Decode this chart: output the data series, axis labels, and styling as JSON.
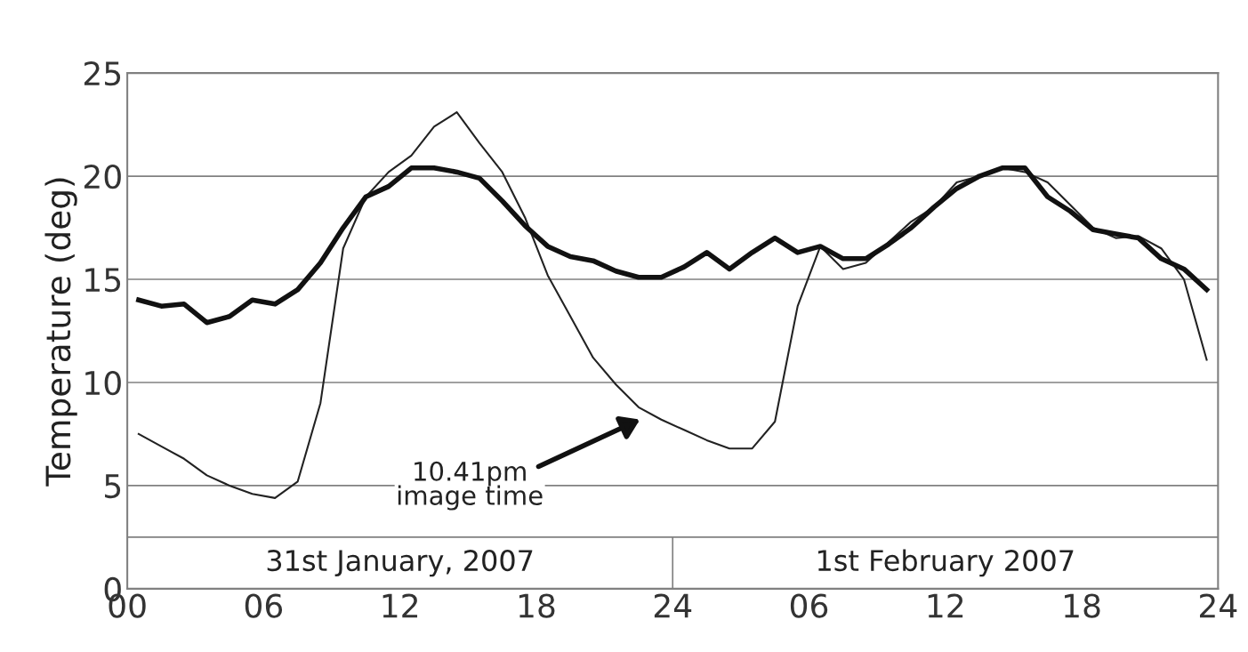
{
  "chart_data": {
    "type": "line",
    "ylabel": "Temperature (deg)",
    "x": [
      "2007-01-31T00:30",
      "2007-01-31T01:30",
      "2007-01-31T02:30",
      "2007-01-31T03:30",
      "2007-01-31T04:30",
      "2007-01-31T05:30",
      "2007-01-31T06:30",
      "2007-01-31T07:30",
      "2007-01-31T08:30",
      "2007-01-31T09:30",
      "2007-01-31T10:30",
      "2007-01-31T11:30",
      "2007-01-31T12:30",
      "2007-01-31T13:30",
      "2007-01-31T14:30",
      "2007-01-31T15:30",
      "2007-01-31T16:30",
      "2007-01-31T17:30",
      "2007-01-31T18:30",
      "2007-01-31T19:30",
      "2007-01-31T20:30",
      "2007-01-31T21:30",
      "2007-01-31T22:30",
      "2007-01-31T23:30",
      "2007-02-01T00:30",
      "2007-02-01T01:30",
      "2007-02-01T02:30",
      "2007-02-01T03:30",
      "2007-02-01T04:30",
      "2007-02-01T05:30",
      "2007-02-01T06:30",
      "2007-02-01T07:30",
      "2007-02-01T08:30",
      "2007-02-01T09:30",
      "2007-02-01T10:30",
      "2007-02-01T11:30",
      "2007-02-01T12:30",
      "2007-02-01T13:30",
      "2007-02-01T14:30",
      "2007-02-01T15:30",
      "2007-02-01T16:30",
      "2007-02-01T17:30",
      "2007-02-01T18:30",
      "2007-02-01T19:30",
      "2007-02-01T20:30",
      "2007-02-01T21:30",
      "2007-02-01T22:30",
      "2007-02-01T23:30"
    ],
    "series": [
      {
        "color": "#111111",
        "values": [
          14.0,
          13.7,
          13.8,
          12.9,
          13.2,
          14.0,
          13.8,
          14.5,
          15.8,
          17.5,
          19.0,
          19.5,
          20.4,
          20.4,
          20.2,
          19.9,
          18.8,
          17.6,
          16.6,
          16.1,
          15.9,
          15.4,
          15.1,
          15.1,
          15.6,
          16.3,
          15.5,
          16.3,
          17.0,
          16.3,
          16.6,
          16.0,
          16.0,
          16.7,
          17.5,
          18.5,
          19.4,
          20.0,
          20.4,
          20.4,
          19.0,
          18.3,
          17.4,
          17.2,
          17.0,
          16.0,
          15.5,
          14.5
        ]
      },
      {
        "color": "#222222",
        "values": [
          7.5,
          6.9,
          6.3,
          5.5,
          5.0,
          4.6,
          4.4,
          5.2,
          9.0,
          16.5,
          19.0,
          20.2,
          21.0,
          22.4,
          23.1,
          21.6,
          20.2,
          18.0,
          15.2,
          13.2,
          11.2,
          9.9,
          8.8,
          8.2,
          7.7,
          7.2,
          6.8,
          6.8,
          8.1,
          13.7,
          16.6,
          15.5,
          15.8,
          16.8,
          17.8,
          18.5,
          19.7,
          20.0,
          20.4,
          20.2,
          19.7,
          18.6,
          17.5,
          17.0,
          17.1,
          16.5,
          15.0,
          11.1
        ]
      }
    ],
    "xlim": [
      "2007-01-31T00:00",
      "2007-02-02T00:00"
    ],
    "xticks": [
      {
        "value": "2007-01-31T00:00",
        "label": "00"
      },
      {
        "value": "2007-01-31T06:00",
        "label": "06"
      },
      {
        "value": "2007-01-31T12:00",
        "label": "12"
      },
      {
        "value": "2007-01-31T18:00",
        "label": "18"
      },
      {
        "value": "2007-02-01T00:00",
        "label": "24"
      },
      {
        "value": "2007-02-01T06:00",
        "label": "06"
      },
      {
        "value": "2007-02-01T12:00",
        "label": "12"
      },
      {
        "value": "2007-02-01T18:00",
        "label": "18"
      },
      {
        "value": "2007-02-02T00:00",
        "label": "24"
      }
    ],
    "ylim": [
      0,
      25
    ],
    "yticks": [
      0,
      5,
      10,
      15,
      20,
      25
    ],
    "grid": "y",
    "marker": "none",
    "line_style": "solid",
    "ref_lines": [
      {
        "axis": "y",
        "value": 2.5,
        "color": "#808080"
      },
      {
        "axis": "x",
        "value": "2007-02-01T00:00",
        "color": "#808080"
      }
    ],
    "annotations": [
      "31st January, 2007",
      "1st February 2007",
      "10.41pm\nimage time"
    ]
  }
}
